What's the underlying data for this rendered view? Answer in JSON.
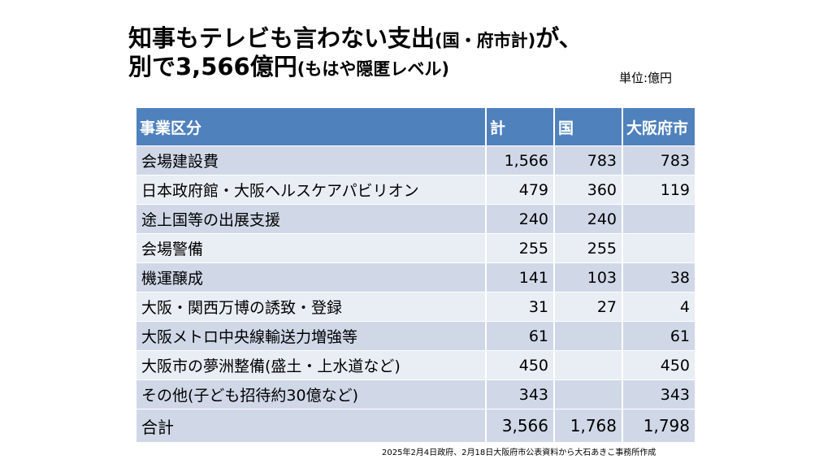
{
  "title": {
    "line1": "知事もテレビも言わない支出",
    "line1_sub": "(国・府市計)",
    "line1_end": "が、",
    "line2": "別で3,566億円",
    "line2_sub": "(もはや隠匿レベル)"
  },
  "unit_label": "単位:億円",
  "table": {
    "headers": [
      "事業区分",
      "計",
      "国",
      "大阪府市"
    ],
    "rows": [
      {
        "label": "会場建設費",
        "total": "1,566",
        "national": "783",
        "osaka": "783"
      },
      {
        "label": "日本政府館・大阪ヘルスケアパビリオン",
        "total": "479",
        "national": "360",
        "osaka": "119"
      },
      {
        "label": "途上国等の出展支援",
        "total": "240",
        "national": "240",
        "osaka": ""
      },
      {
        "label": "会場警備",
        "total": "255",
        "national": "255",
        "osaka": ""
      },
      {
        "label": "機運醸成",
        "total": "141",
        "national": "103",
        "osaka": "38"
      },
      {
        "label": "大阪・関西万博の誘致・登録",
        "total": "31",
        "national": "27",
        "osaka": "4"
      },
      {
        "label": "大阪メトロ中央線輸送力増強等",
        "total": "61",
        "national": "",
        "osaka": "61"
      },
      {
        "label": "大阪市の夢洲整備(盛土・上水道など)",
        "total": "450",
        "national": "",
        "osaka": "450"
      },
      {
        "label": "その他(子ども招待約30億など)",
        "total": "343",
        "national": "",
        "osaka": "343"
      }
    ],
    "sum": {
      "label": "合計",
      "total": "3,566",
      "national": "1,768",
      "osaka": "1,798"
    }
  },
  "source_note": "2025年2月4日政府、2月18日大阪府市公表資料から大石あきこ事務所作成",
  "colors": {
    "header_bg": "#4f81bd",
    "row_odd": "#d0d8e8",
    "row_even": "#e9edf4"
  }
}
